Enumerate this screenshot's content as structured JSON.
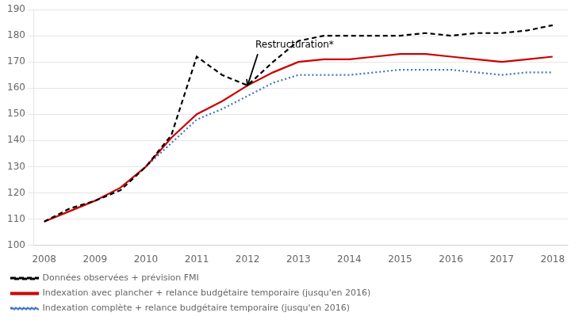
{
  "chart_data": {
    "type": "line",
    "xlim": [
      2007.8,
      2018.3
    ],
    "xticks": [
      2008,
      2009,
      2010,
      2011,
      2012,
      2013,
      2014,
      2015,
      2016,
      2017,
      2018
    ],
    "ylim": [
      100,
      190
    ],
    "yticks": [
      100,
      110,
      120,
      130,
      140,
      150,
      160,
      170,
      180,
      190
    ],
    "grid": "y",
    "legend": "lower left",
    "series": [
      {
        "name": "Données observées + prévision FMI",
        "color": "#000000",
        "line_style": "dashed",
        "x": [
          2008,
          2008.5,
          2009,
          2009.5,
          2010,
          2010.5,
          2011,
          2011.5,
          2012,
          2012.5,
          2013,
          2013.5,
          2014,
          2014.5,
          2015,
          2015.5,
          2016,
          2016.5,
          2017,
          2017.5,
          2018
        ],
        "values": [
          109,
          114,
          117,
          121,
          130,
          142,
          172,
          165,
          161,
          170,
          178,
          180,
          180,
          180,
          180,
          181,
          180,
          181,
          181,
          182,
          184
        ]
      },
      {
        "name": "Indexation avec plancher + relance budgétaire temporaire (jusqu'en 2016)",
        "color": "#cc0000",
        "line_style": "solid",
        "x": [
          2008,
          2008.5,
          2009,
          2009.5,
          2010,
          2010.5,
          2011,
          2011.5,
          2012,
          2012.5,
          2013,
          2013.5,
          2014,
          2014.5,
          2015,
          2015.5,
          2016,
          2016.5,
          2017,
          2017.5,
          2018
        ],
        "values": [
          109,
          113,
          117,
          122,
          130,
          141,
          150,
          155,
          161,
          166,
          170,
          171,
          171,
          172,
          173,
          173,
          172,
          171,
          170,
          171,
          172
        ]
      },
      {
        "name": "Indexation complète + relance budgétaire temporaire (jusqu'en 2016)",
        "color": "#4472c4",
        "line_style": "dotted",
        "x": [
          2010,
          2010.5,
          2011,
          2011.5,
          2012,
          2012.5,
          2013,
          2013.5,
          2014,
          2014.5,
          2015,
          2015.5,
          2016,
          2016.5,
          2017,
          2017.5,
          2018
        ],
        "values": [
          130,
          139,
          148,
          152,
          157,
          162,
          165,
          165,
          165,
          166,
          167,
          167,
          167,
          166,
          165,
          166,
          166
        ]
      }
    ],
    "annotations": [
      {
        "text": "Restructuration*",
        "x": 2012.2,
        "y": 173,
        "arrow_x": 2012,
        "arrow_y": 161
      }
    ]
  }
}
